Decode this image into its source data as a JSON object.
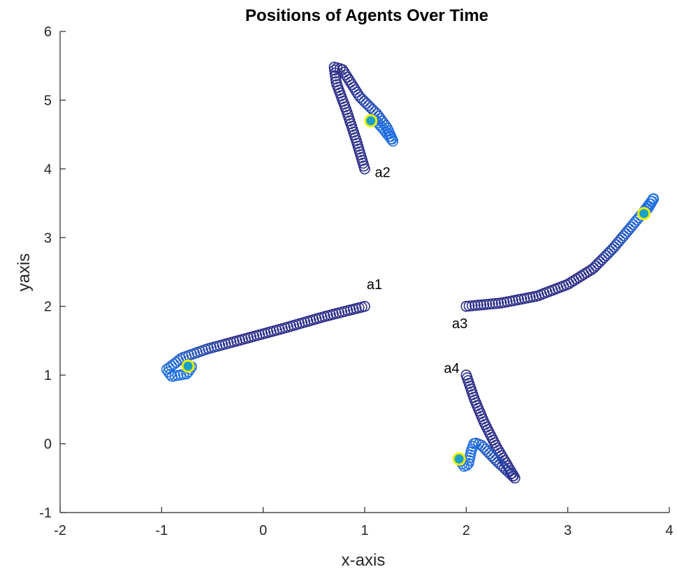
{
  "chart_data": {
    "type": "scatter",
    "title": "Positions of Agents Over Time",
    "xlabel": "x-axis",
    "ylabel": "yaxis",
    "xlim": [
      -2,
      4
    ],
    "ylim": [
      -1,
      6
    ],
    "xticks": [
      "-2",
      "-1",
      "0",
      "1",
      "2",
      "3",
      "4"
    ],
    "yticks": [
      "-1",
      "0",
      "1",
      "2",
      "3",
      "4",
      "5",
      "6"
    ],
    "grid": false,
    "colors": {
      "trail_early": "#2e2f8a",
      "trail_late": "#1e6fe0",
      "current_marker_edge": "#e8f000",
      "current_marker_fill": "#1aa0c8"
    },
    "series": [
      {
        "name": "a1",
        "path": [
          [
            1.0,
            2.0
          ],
          [
            0.6,
            1.85
          ],
          [
            0.2,
            1.68
          ],
          [
            -0.2,
            1.52
          ],
          [
            -0.55,
            1.38
          ],
          [
            -0.8,
            1.25
          ],
          [
            -0.95,
            1.08
          ],
          [
            -0.9,
            0.98
          ],
          [
            -0.75,
            1.02
          ],
          [
            -0.7,
            1.13
          ],
          [
            -0.75,
            1.14
          ]
        ],
        "current": [
          -0.74,
          1.13
        ]
      },
      {
        "name": "a2",
        "path": [
          [
            1.0,
            4.0
          ],
          [
            0.92,
            4.4
          ],
          [
            0.82,
            4.85
          ],
          [
            0.72,
            5.25
          ],
          [
            0.7,
            5.48
          ],
          [
            0.78,
            5.45
          ],
          [
            0.95,
            5.05
          ],
          [
            1.12,
            4.8
          ],
          [
            1.22,
            4.6
          ],
          [
            1.28,
            4.4
          ],
          [
            1.2,
            4.55
          ],
          [
            1.1,
            4.72
          ],
          [
            1.06,
            4.7
          ]
        ],
        "current": [
          1.06,
          4.7
        ]
      },
      {
        "name": "a3",
        "path": [
          [
            2.0,
            2.0
          ],
          [
            2.35,
            2.05
          ],
          [
            2.7,
            2.15
          ],
          [
            3.0,
            2.32
          ],
          [
            3.25,
            2.55
          ],
          [
            3.45,
            2.85
          ],
          [
            3.62,
            3.15
          ],
          [
            3.75,
            3.38
          ],
          [
            3.85,
            3.58
          ],
          [
            3.8,
            3.45
          ],
          [
            3.75,
            3.35
          ]
        ],
        "current": [
          3.75,
          3.35
        ]
      },
      {
        "name": "a4",
        "path": [
          [
            2.0,
            1.0
          ],
          [
            2.08,
            0.65
          ],
          [
            2.18,
            0.3
          ],
          [
            2.3,
            -0.05
          ],
          [
            2.42,
            -0.35
          ],
          [
            2.48,
            -0.5
          ],
          [
            2.3,
            -0.25
          ],
          [
            2.15,
            -0.02
          ],
          [
            2.08,
            0.02
          ],
          [
            2.05,
            -0.1
          ],
          [
            2.02,
            -0.3
          ],
          [
            1.98,
            -0.33
          ],
          [
            1.93,
            -0.22
          ]
        ],
        "current": [
          1.93,
          -0.22
        ]
      }
    ],
    "annotations": [
      {
        "text": "a1",
        "x": 1.02,
        "y": 2.25
      },
      {
        "text": "a2",
        "x": 1.1,
        "y": 3.88
      },
      {
        "text": "a3",
        "x": 1.86,
        "y": 1.68
      },
      {
        "text": "a4",
        "x": 1.78,
        "y": 1.03
      }
    ]
  }
}
